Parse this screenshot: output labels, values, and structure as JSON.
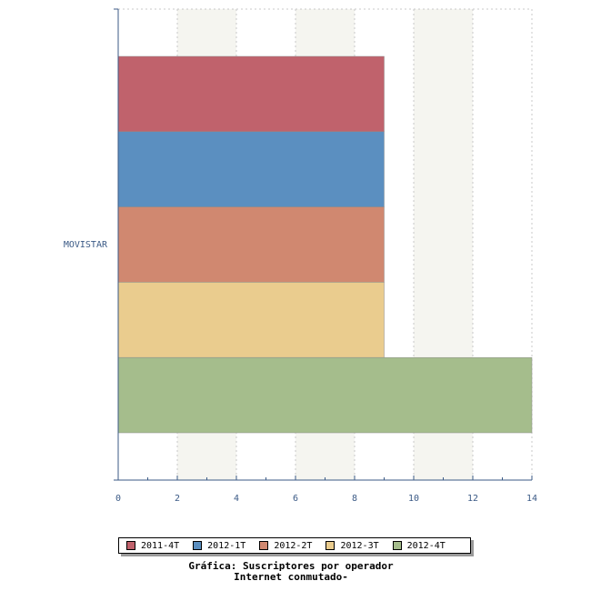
{
  "chart_data": {
    "type": "bar",
    "orientation": "horizontal",
    "categories": [
      "MOVISTAR"
    ],
    "series": [
      {
        "name": "2011-4T",
        "values": [
          9
        ],
        "color": "#c0626c"
      },
      {
        "name": "2012-1T",
        "values": [
          9
        ],
        "color": "#5b8fc0"
      },
      {
        "name": "2012-2T",
        "values": [
          9
        ],
        "color": "#d08870"
      },
      {
        "name": "2012-3T",
        "values": [
          9
        ],
        "color": "#eacc8e"
      },
      {
        "name": "2012-4T",
        "values": [
          14
        ],
        "color": "#a5bd8c"
      }
    ],
    "xlim": [
      0,
      14
    ],
    "xticks": [
      0,
      2,
      4,
      6,
      8,
      10,
      12,
      14
    ],
    "grid": true,
    "legend_position": "bottom",
    "title_lines": [
      "Gráfica: Suscriptores por operador",
      "Internet conmutado-"
    ]
  },
  "colors": {
    "axis": "#3b5a86",
    "band": "#f5f5f0",
    "grid": "#c8c8c8"
  }
}
